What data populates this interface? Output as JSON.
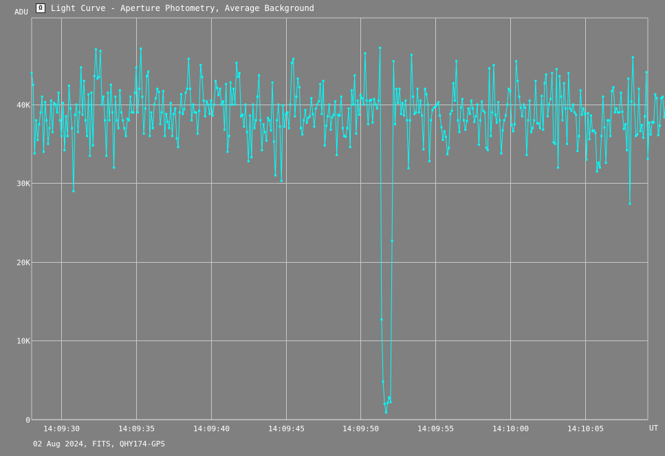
{
  "window": {
    "title": "Light Curve - Aperture Photometry, Average Background",
    "icon": "light-curve-app-icon"
  },
  "footer": {
    "caption": "02 Aug 2024, FITS, QHY174-GPS"
  },
  "colors": {
    "background": "#808080",
    "grid": "#c8c8c8",
    "series": "#00ffff",
    "text": "#ffffff"
  },
  "chart_data": {
    "type": "line",
    "title": "Light Curve - Aperture Photometry, Average Background",
    "xlabel": "UT",
    "ylabel": "ADU",
    "xlim": [
      "14:09:28.0",
      "14:10:09.2"
    ],
    "ylim": [
      0,
      51000
    ],
    "grid": true,
    "markers": true,
    "x_ticks": [
      "14:09:30",
      "14:09:35",
      "14:09:40",
      "14:09:45",
      "14:09:50",
      "14:09:55",
      "14:10:00",
      "14:10:05"
    ],
    "y_ticks": [
      {
        "value": 0,
        "label": "0"
      },
      {
        "value": 10000,
        "label": "10K"
      },
      {
        "value": 20000,
        "label": "20K"
      },
      {
        "value": 30000,
        "label": "30K"
      },
      {
        "value": 40000,
        "label": "40K"
      }
    ],
    "sample_interval_s": 0.1,
    "series": [
      {
        "values": [
          44000,
          42500,
          33800,
          38000,
          35500,
          37500,
          39000,
          41000,
          34000,
          40300,
          38000,
          35000,
          37000,
          40500,
          36500,
          40200,
          40000,
          39000,
          41500,
          38000,
          36000,
          40200,
          34200,
          38500,
          36000,
          42400,
          39500,
          37000,
          29000,
          38700,
          40000,
          36500,
          39000,
          44700,
          38700,
          43000,
          38000,
          36000,
          41300,
          33500,
          41500,
          34800,
          43600,
          47000,
          43300,
          43500,
          46800,
          40000,
          41000,
          38000,
          33500,
          41500,
          38000,
          42500,
          39000,
          32000,
          41000,
          38000,
          37000,
          41800,
          39000,
          38000,
          37000,
          36000,
          38200,
          38000,
          41000,
          39000,
          39000,
          41500,
          44700,
          39000,
          42000,
          47100,
          41000,
          36300,
          39500,
          43600,
          44200,
          36000,
          39000,
          37000,
          40000,
          40800,
          42000,
          41600,
          37500,
          39000,
          41700,
          36000,
          38800,
          37800,
          37000,
          40200,
          36000,
          38800,
          39500,
          35700,
          34600,
          39000,
          41300,
          38800,
          39400,
          41500,
          42000,
          45800,
          42000,
          38000,
          40000,
          39000,
          39000,
          36300,
          39200,
          45000,
          43500,
          40500,
          38500,
          40400,
          40000,
          38800,
          40500,
          38600,
          40000,
          43000,
          42100,
          41200,
          42000,
          40000,
          40400,
          36800,
          42600,
          34000,
          36000,
          42800,
          40000,
          42000,
          40000,
          45300,
          43500,
          44000,
          38500,
          38700,
          37200,
          40000,
          36500,
          32800,
          38600,
          33300,
          40000,
          37000,
          38000,
          41000,
          43700,
          38000,
          34200,
          37500,
          36500,
          35400,
          38300,
          38000,
          36700,
          42800,
          35300,
          31000,
          38000,
          40000,
          37200,
          30300,
          39900,
          37200,
          38800,
          39000,
          37000,
          40000,
          45300,
          45800,
          38500,
          41000,
          43300,
          42200,
          37000,
          36200,
          38000,
          39300,
          37700,
          38300,
          38500,
          40800,
          38800,
          37200,
          39500,
          40000,
          40400,
          42600,
          38800,
          43000,
          34800,
          37300,
          38500,
          40000,
          36800,
          38400,
          38700,
          40400,
          33600,
          38700,
          38600,
          41000,
          37000,
          36000,
          35900,
          37000,
          39500,
          34600,
          41800,
          40000,
          43700,
          36300,
          40500,
          38700,
          41200,
          40800,
          40000,
          46500,
          40500,
          37500,
          40500,
          40600,
          37700,
          40700,
          40000,
          39500,
          40500,
          47200,
          12700,
          4800,
          2000,
          900,
          2100,
          2800,
          2200,
          22700,
          45500,
          37500,
          42000,
          40200,
          42000,
          38800,
          40200,
          38600,
          40500,
          38000,
          31900,
          38000,
          46300,
          41000,
          38800,
          39000,
          42000,
          39000,
          40500,
          38600,
          34300,
          42000,
          41300,
          40000,
          32800,
          38000,
          39300,
          39600,
          39700,
          40000,
          40300,
          38600,
          37100,
          35500,
          36600,
          35900,
          33700,
          34500,
          38800,
          39200,
          42700,
          40500,
          45500,
          38000,
          36500,
          39600,
          40700,
          38000,
          36800,
          37900,
          39500,
          38800,
          40500,
          39500,
          37800,
          38500,
          40000,
          34900,
          38000,
          40400,
          39200,
          39000,
          34500,
          34200,
          44600,
          36000,
          39000,
          45000,
          38700,
          37700,
          40300,
          38000,
          33800,
          36700,
          38000,
          38600,
          40000,
          42000,
          41700,
          37400,
          36600,
          37500,
          45500,
          43000,
          41000,
          39600,
          38500,
          40000,
          39600,
          33600,
          38000,
          40500,
          36500,
          37000,
          38000,
          43000,
          37600,
          37600,
          37000,
          41100,
          36800,
          42700,
          43800,
          38500,
          40000,
          40700,
          44000,
          35200,
          35000,
          44500,
          32000,
          43600,
          41000,
          38000,
          42700,
          39500,
          35000,
          44000,
          39500,
          39200,
          40000,
          39000,
          38700,
          34100,
          36000,
          41800,
          38700,
          39500,
          38800,
          33000,
          38900,
          35600,
          38600,
          36600,
          36700,
          36400,
          31500,
          32600,
          32000,
          36000,
          41000,
          37100,
          32600,
          38000,
          38000,
          36000,
          41700,
          42200,
          39000,
          39500,
          39000,
          39000,
          41500,
          39100,
          36900,
          37500,
          34200,
          43300,
          27400,
          40400,
          46000,
          40000,
          36000,
          36200,
          42000,
          36600,
          37400,
          35800,
          38500,
          44100,
          33100,
          37700,
          36200,
          37800,
          37700,
          41300,
          40800,
          36100,
          37300,
          40800,
          41000,
          38400,
          40300,
          37900,
          32800,
          40300,
          40400,
          35100,
          38000,
          40000,
          34900,
          36200,
          41800,
          40800,
          35100,
          36200,
          43600,
          40000,
          38000,
          38200,
          35000,
          40500,
          34700,
          39800
        ]
      }
    ]
  }
}
